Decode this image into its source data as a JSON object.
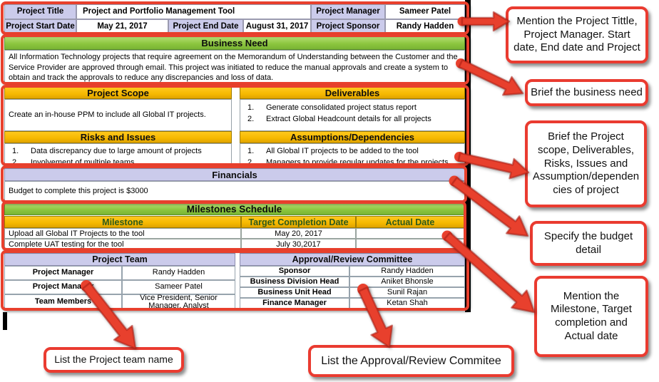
{
  "charter": {
    "header": {
      "title_label": "Project Title",
      "title_value": "Project and Portfolio Management Tool",
      "manager_label": "Project Manager",
      "manager_value": "Sameer Patel",
      "start_label": "Project Start Date",
      "start_value": "May 21, 2017",
      "end_label": "Project End Date",
      "end_value": "August 31, 2017",
      "sponsor_label": "Project Sponsor",
      "sponsor_value": "Randy Hadden"
    },
    "business_need": {
      "title": "Business Need",
      "text": "All  Information Technology projects that require agreement on the Memorandum of Understanding  between the Customer and the Service Provider are approved through email. This project was initiated to reduce the manual approvals and create a system to obtain and track the approvals to reduce any discrepancies and loss of data."
    },
    "list_numbers": [
      "1.",
      "2."
    ],
    "scope": {
      "title": "Project Scope",
      "text": "Create an in-house PPM to include all Global IT projects."
    },
    "deliverables": {
      "title": "Deliverables",
      "items": [
        "Generate consolidated project status report",
        "Extract Global Headcount details for all projects"
      ]
    },
    "risks": {
      "title": "Risks and Issues",
      "items": [
        "Data discrepancy due to large amount of projects",
        "Involvement of multiple teams"
      ]
    },
    "assumptions": {
      "title": "Assumptions/Dependencies",
      "items": [
        "All Global IT projects to be added to the tool",
        "Managers to provide regular updates for the projects"
      ]
    },
    "financials": {
      "title": "Financials",
      "text": "Budget to complete this project is $3000"
    },
    "milestones": {
      "title": "Milestones Schedule",
      "columns": [
        "Milestone",
        "Target Completion Date",
        "Actual Date"
      ],
      "rows": [
        [
          "Upload all Global IT Projects to the tool",
          "May 20, 2017",
          ""
        ],
        [
          "Complete UAT testing for the tool",
          "July 30,2017",
          ""
        ]
      ]
    },
    "project_team": {
      "title": "Project Team",
      "rows": [
        [
          "Project Manager",
          "Randy Hadden"
        ],
        [
          "Project Manager",
          "Sameer Patel"
        ],
        [
          "Team Members",
          "Vice President, Senior Manager, Analyst"
        ]
      ]
    },
    "committee": {
      "title": "Approval/Review Committee",
      "rows": [
        [
          "Sponsor",
          "Randy Hadden"
        ],
        [
          "Business Division Head",
          "Aniket Bhonsle"
        ],
        [
          "Business Unit Head",
          "Sunil Rajan"
        ],
        [
          "Finance Manager",
          "Ketan Shah"
        ]
      ]
    }
  },
  "callouts": [
    {
      "text": "Mention the Project Tittle, Project Manager. Start date, End date and Project"
    },
    {
      "text": "Brief the business need"
    },
    {
      "text": "Brief the Project scope, Deliverables, Risks, Issues and Assumption/dependencies of project"
    },
    {
      "text": "Specify the budget detail"
    },
    {
      "text": "Mention the Milestone, Target completion and Actual date"
    },
    {
      "text": "List the Project team name"
    },
    {
      "text": "List the Approval/Review Commitee"
    }
  ],
  "colors": {
    "accent_red": "#E8402D",
    "header_green": "#8CC63F",
    "header_gold": "#F6B800",
    "header_lavender": "#CBCBEB"
  }
}
